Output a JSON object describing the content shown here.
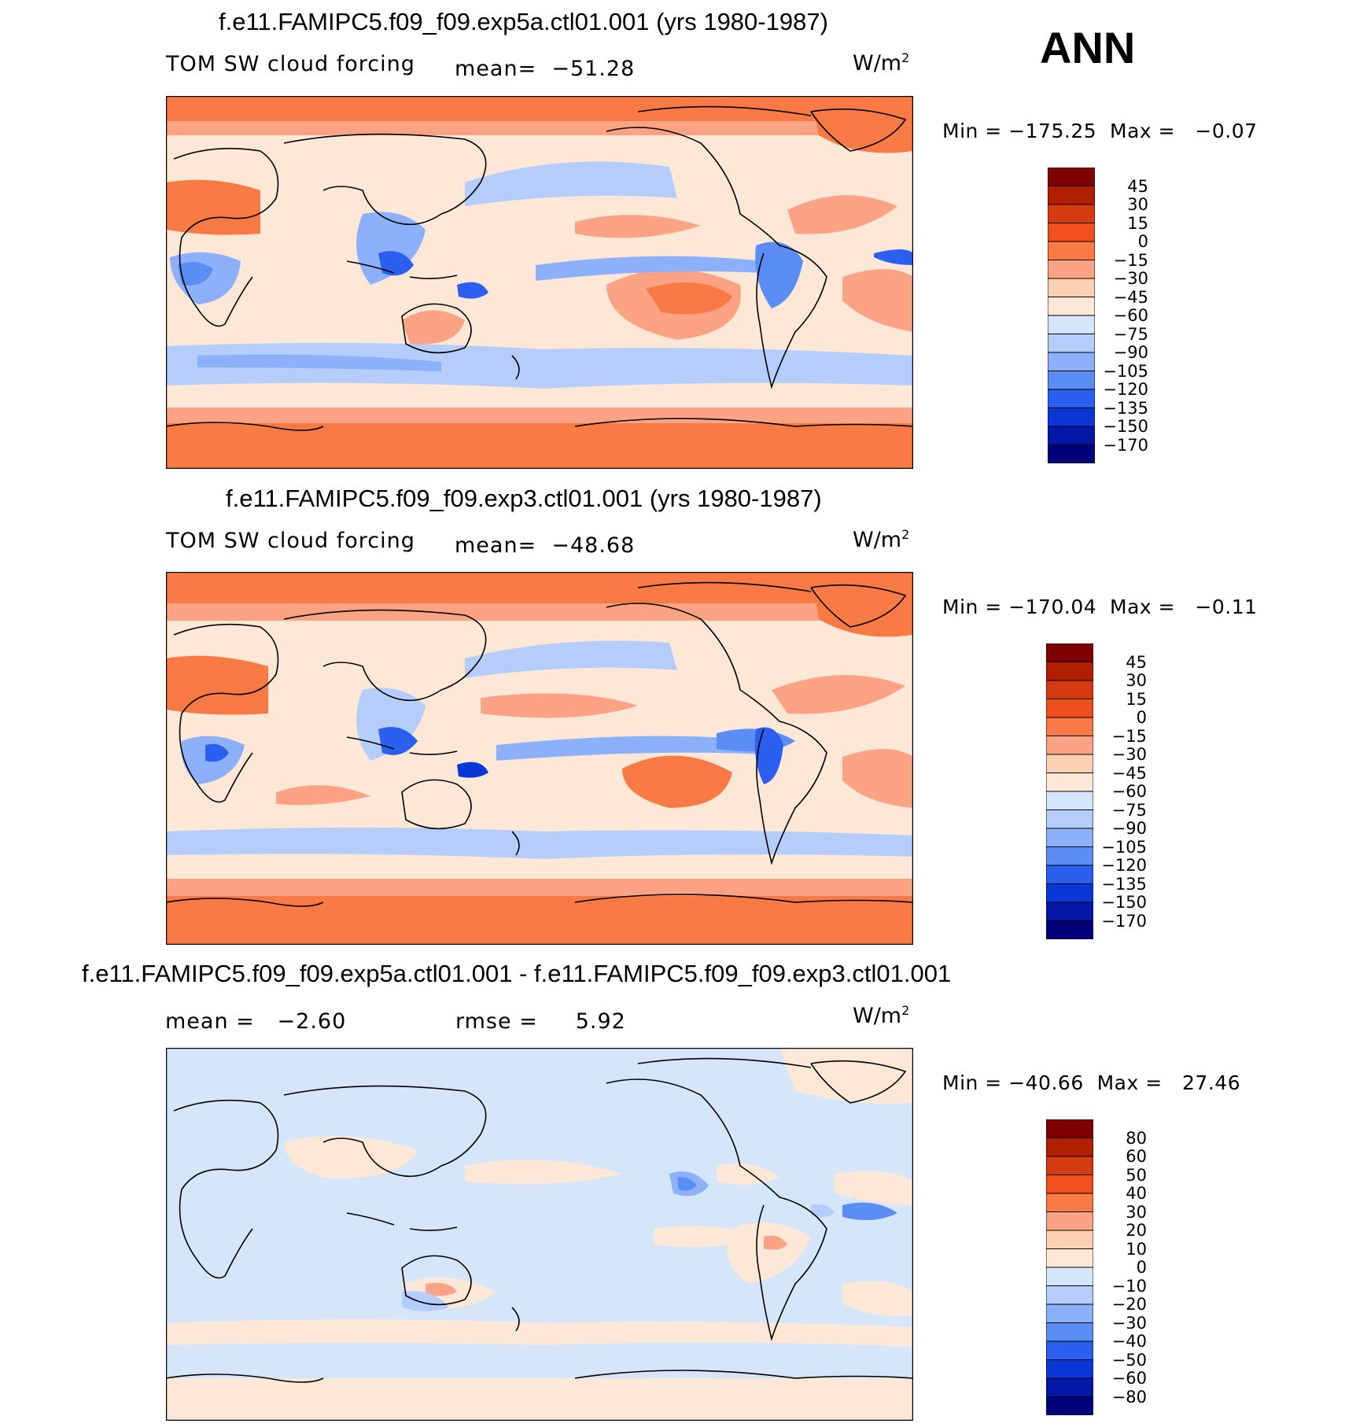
{
  "season": "ANN",
  "panels": [
    {
      "title": "f.e11.FAMIPC5.f09_f09.exp5a.ctl01.001 (yrs 1980-1987)",
      "variable": "TOM SW cloud forcing",
      "stat": "mean=  −51.28",
      "units_base": "W/m",
      "units_exp": "2",
      "minmax": "Min = −175.25  Max =   −0.07",
      "colorbar": {
        "colors": [
          "#7f0000",
          "#b21e00",
          "#d63a10",
          "#f0501e",
          "#fa7a46",
          "#fca386",
          "#fdd0b2",
          "#fde8d8",
          "#d6e6fa",
          "#b4cdfa",
          "#8cb0fa",
          "#5a8ef5",
          "#2a5ff0",
          "#0a36d8",
          "#0017a8",
          "#00007a"
        ],
        "labels": [
          "45",
          "30",
          "15",
          "0",
          "−15",
          "−30",
          "−45",
          "−60",
          "−75",
          "−90",
          "−105",
          "−120",
          "−135",
          "−150",
          "−170"
        ]
      }
    },
    {
      "title": "f.e11.FAMIPC5.f09_f09.exp3.ctl01.001 (yrs 1980-1987)",
      "variable": "TOM SW cloud forcing",
      "stat": "mean=  −48.68",
      "units_base": "W/m",
      "units_exp": "2",
      "minmax": "Min = −170.04  Max =   −0.11",
      "colorbar": {
        "colors": [
          "#7f0000",
          "#b21e00",
          "#d63a10",
          "#f0501e",
          "#fa7a46",
          "#fca386",
          "#fdd0b2",
          "#fde8d8",
          "#d6e6fa",
          "#b4cdfa",
          "#8cb0fa",
          "#5a8ef5",
          "#2a5ff0",
          "#0a36d8",
          "#0017a8",
          "#00007a"
        ],
        "labels": [
          "45",
          "30",
          "15",
          "0",
          "−15",
          "−30",
          "−45",
          "−60",
          "−75",
          "−90",
          "−105",
          "−120",
          "−135",
          "−150",
          "−170"
        ]
      }
    },
    {
      "title": "f.e11.FAMIPC5.f09_f09.exp5a.ctl01.001 - f.e11.FAMIPC5.f09_f09.exp3.ctl01.001",
      "mean_label": "mean =   −2.60",
      "rmse_label": "rmse =     5.92",
      "units_base": "W/m",
      "units_exp": "2",
      "minmax": "Min = −40.66  Max =   27.46",
      "colorbar": {
        "colors": [
          "#7f0000",
          "#b21e00",
          "#d63a10",
          "#f0501e",
          "#fa7a46",
          "#fca386",
          "#fdd0b2",
          "#fde8d8",
          "#d6e6fa",
          "#b4cdfa",
          "#8cb0fa",
          "#5a8ef5",
          "#2a5ff0",
          "#0a36d8",
          "#0017a8",
          "#00007a"
        ],
        "labels": [
          "80",
          "60",
          "50",
          "40",
          "30",
          "20",
          "10",
          "0",
          "−10",
          "−20",
          "−30",
          "−40",
          "−50",
          "−60",
          "−80"
        ]
      }
    }
  ]
}
